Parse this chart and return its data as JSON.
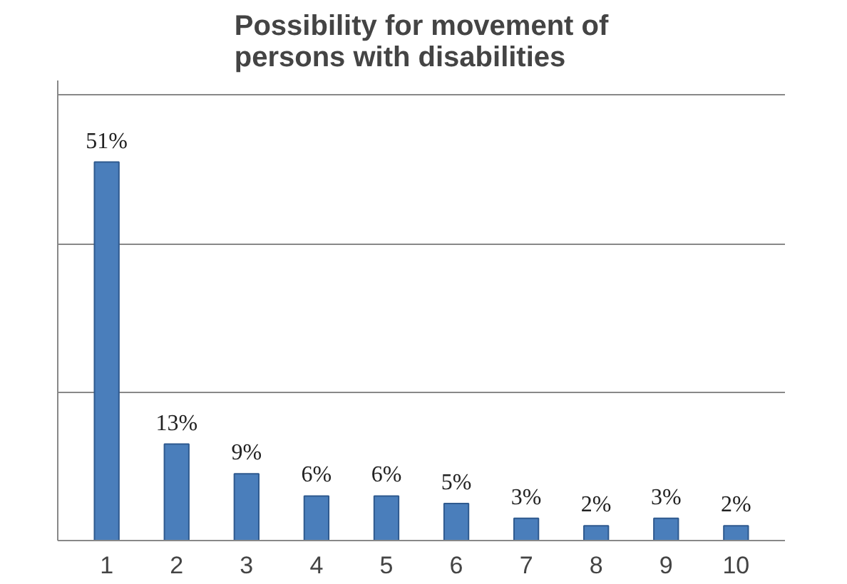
{
  "chart_data": {
    "type": "bar",
    "title": "Possibility for movement of\npersons with disabilities",
    "categories": [
      "1",
      "2",
      "3",
      "4",
      "5",
      "6",
      "7",
      "8",
      "9",
      "10"
    ],
    "values": [
      51,
      13,
      9,
      6,
      6,
      5,
      3,
      2,
      3,
      2
    ],
    "value_labels": [
      "51%",
      "13%",
      "9%",
      "6%",
      "6%",
      "5%",
      "3%",
      "2%",
      "3%",
      "2%"
    ],
    "color": "#4a7ebb",
    "ylim": [
      0,
      62
    ],
    "yticks": [
      {
        "value": 0,
        "label": null
      },
      {
        "value": 20,
        "label": null
      },
      {
        "value": 40,
        "label": null
      },
      {
        "value": 60,
        "label": null
      }
    ],
    "grid": "y",
    "tick_labels": "x"
  }
}
